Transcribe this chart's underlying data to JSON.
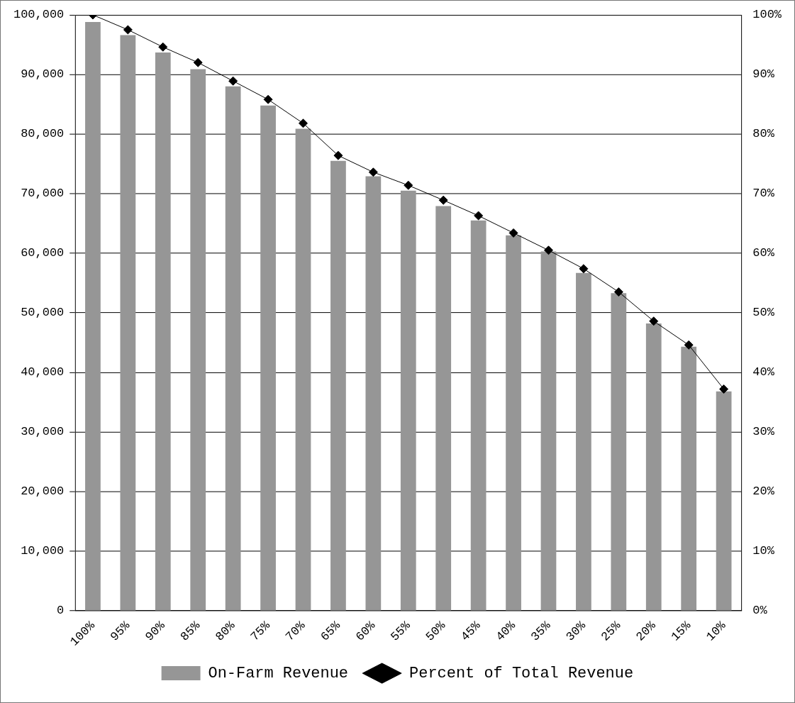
{
  "chart_data": {
    "type": "bar",
    "categories": [
      "100%",
      "95%",
      "90%",
      "85%",
      "80%",
      "75%",
      "70%",
      "65%",
      "60%",
      "55%",
      "50%",
      "45%",
      "40%",
      "35%",
      "30%",
      "25%",
      "20%",
      "15%",
      "10%"
    ],
    "series": [
      {
        "name": "On-Farm Revenue",
        "color": "#969696",
        "values": [
          98800,
          96600,
          93700,
          90900,
          88000,
          84800,
          80900,
          75500,
          72900,
          70500,
          67900,
          65500,
          63000,
          60300,
          56700,
          53300,
          48200,
          44300,
          36800
        ]
      },
      {
        "name": "Percent of Total Revenue",
        "type": "line",
        "axis": "y2",
        "color": "#000000",
        "marker": "diamond",
        "values": [
          100,
          97.5,
          94.6,
          92.0,
          88.9,
          85.8,
          81.8,
          76.4,
          73.6,
          71.4,
          68.9,
          66.3,
          63.4,
          60.5,
          57.4,
          53.5,
          48.6,
          44.6,
          37.2
        ]
      }
    ],
    "ylim": [
      0,
      100000
    ],
    "yticks": [
      {
        "value": 0,
        "label": "0"
      },
      {
        "value": 10000,
        "label": "10,000"
      },
      {
        "value": 20000,
        "label": "20,000"
      },
      {
        "value": 30000,
        "label": "30,000"
      },
      {
        "value": 40000,
        "label": "40,000"
      },
      {
        "value": 50000,
        "label": "50,000"
      },
      {
        "value": 60000,
        "label": "60,000"
      },
      {
        "value": 70000,
        "label": "70,000"
      },
      {
        "value": 80000,
        "label": "80,000"
      },
      {
        "value": 90000,
        "label": "90,000"
      },
      {
        "value": 100000,
        "label": "100,000"
      }
    ],
    "y2lim": [
      0,
      100
    ],
    "y2ticks": [
      {
        "value": 0,
        "label": "0%"
      },
      {
        "value": 10,
        "label": "10%"
      },
      {
        "value": 20,
        "label": "20%"
      },
      {
        "value": 30,
        "label": "30%"
      },
      {
        "value": 40,
        "label": "40%"
      },
      {
        "value": 50,
        "label": "50%"
      },
      {
        "value": 60,
        "label": "60%"
      },
      {
        "value": 70,
        "label": "70%"
      },
      {
        "value": 80,
        "label": "80%"
      },
      {
        "value": 90,
        "label": "90%"
      },
      {
        "value": 100,
        "label": "100%"
      }
    ],
    "grid": "y",
    "legend": "bottom"
  }
}
